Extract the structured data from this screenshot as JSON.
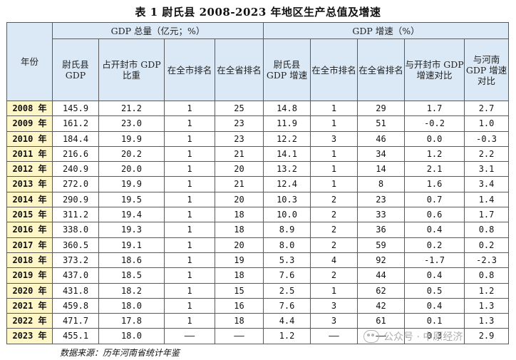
{
  "title": "表 1  尉氏县 2008-2023 年地区生产总值及增速",
  "header": {
    "year": "年份",
    "group_gdp": "GDP 总量（亿元；%）",
    "group_growth": "GDP 增速（%）",
    "columns": [
      "尉氏县 GDP",
      "占开封市 GDP 比重",
      "在全市排名",
      "在全省排名",
      "尉氏县 GDP 增速",
      "在全市排名",
      "在全省排名",
      "与开封市 GDP 增速对比",
      "与河南 GDP 增速对比"
    ]
  },
  "rows": [
    {
      "year": "2008 年",
      "gdp": "145.9",
      "share": "21.2",
      "city_rank": "1",
      "prov_rank": "25",
      "growth": "14.8",
      "g_city_rank": "1",
      "g_prov_rank": "29",
      "vs_kaifeng": "1.7",
      "vs_henan": "2.7"
    },
    {
      "year": "2009 年",
      "gdp": "161.2",
      "share": "23.0",
      "city_rank": "1",
      "prov_rank": "23",
      "growth": "11.9",
      "g_city_rank": "1",
      "g_prov_rank": "51",
      "vs_kaifeng": "-0.2",
      "vs_henan": "1.0"
    },
    {
      "year": "2010 年",
      "gdp": "184.4",
      "share": "19.9",
      "city_rank": "1",
      "prov_rank": "23",
      "growth": "12.2",
      "g_city_rank": "3",
      "g_prov_rank": "46",
      "vs_kaifeng": "0.0",
      "vs_henan": "-0.3"
    },
    {
      "year": "2011 年",
      "gdp": "216.6",
      "share": "20.2",
      "city_rank": "1",
      "prov_rank": "21",
      "growth": "14.1",
      "g_city_rank": "1",
      "g_prov_rank": "34",
      "vs_kaifeng": "1.2",
      "vs_henan": "2.2"
    },
    {
      "year": "2012 年",
      "gdp": "240.9",
      "share": "20.0",
      "city_rank": "1",
      "prov_rank": "20",
      "growth": "13.2",
      "g_city_rank": "1",
      "g_prov_rank": "14",
      "vs_kaifeng": "2.1",
      "vs_henan": "3.1"
    },
    {
      "year": "2013 年",
      "gdp": "272.0",
      "share": "19.9",
      "city_rank": "1",
      "prov_rank": "21",
      "growth": "12.4",
      "g_city_rank": "1",
      "g_prov_rank": "8",
      "vs_kaifeng": "1.6",
      "vs_henan": "3.4"
    },
    {
      "year": "2014 年",
      "gdp": "290.9",
      "share": "19.5",
      "city_rank": "1",
      "prov_rank": "20",
      "growth": "10.3",
      "g_city_rank": "2",
      "g_prov_rank": "23",
      "vs_kaifeng": "0.7",
      "vs_henan": "1.4"
    },
    {
      "year": "2015 年",
      "gdp": "311.2",
      "share": "19.4",
      "city_rank": "1",
      "prov_rank": "18",
      "growth": "10.0",
      "g_city_rank": "2",
      "g_prov_rank": "33",
      "vs_kaifeng": "0.6",
      "vs_henan": "1.7"
    },
    {
      "year": "2016 年",
      "gdp": "338.0",
      "share": "19.3",
      "city_rank": "1",
      "prov_rank": "18",
      "growth": "8.9",
      "g_city_rank": "2",
      "g_prov_rank": "36",
      "vs_kaifeng": "0.4",
      "vs_henan": "0.8"
    },
    {
      "year": "2017 年",
      "gdp": "360.5",
      "share": "19.1",
      "city_rank": "1",
      "prov_rank": "20",
      "growth": "8.0",
      "g_city_rank": "2",
      "g_prov_rank": "59",
      "vs_kaifeng": "0.2",
      "vs_henan": "0.2"
    },
    {
      "year": "2018 年",
      "gdp": "373.2",
      "share": "18.6",
      "city_rank": "1",
      "prov_rank": "19",
      "growth": "5.3",
      "g_city_rank": "4",
      "g_prov_rank": "92",
      "vs_kaifeng": "-1.7",
      "vs_henan": "-2.3"
    },
    {
      "year": "2019 年",
      "gdp": "437.0",
      "share": "18.5",
      "city_rank": "1",
      "prov_rank": "18",
      "growth": "7.6",
      "g_city_rank": "2",
      "g_prov_rank": "44",
      "vs_kaifeng": "0.4",
      "vs_henan": "0.8"
    },
    {
      "year": "2020 年",
      "gdp": "431.8",
      "share": "18.2",
      "city_rank": "1",
      "prov_rank": "15",
      "growth": "2.5",
      "g_city_rank": "1",
      "g_prov_rank": "62",
      "vs_kaifeng": "0.5",
      "vs_henan": "1.2"
    },
    {
      "year": "2021 年",
      "gdp": "459.8",
      "share": "18.0",
      "city_rank": "1",
      "prov_rank": "16",
      "growth": "7.6",
      "g_city_rank": "3",
      "g_prov_rank": "42",
      "vs_kaifeng": "0.4",
      "vs_henan": "1.3"
    },
    {
      "year": "2022 年",
      "gdp": "471.7",
      "share": "17.8",
      "city_rank": "1",
      "prov_rank": "18",
      "growth": "4.4",
      "g_city_rank": "3",
      "g_prov_rank": "61",
      "vs_kaifeng": "0.1",
      "vs_henan": "1.3"
    },
    {
      "year": "2023 年",
      "gdp": "455.1",
      "share": "18.0",
      "city_rank": "——",
      "prov_rank": "——",
      "growth": "1.2",
      "g_city_rank": "——",
      "g_prov_rank": "——",
      "vs_kaifeng": "0.3",
      "vs_henan": "2.9"
    }
  ],
  "source": "数据来源：历年河南省统计年鉴",
  "watermark": "公众号 · 中原经济",
  "colors": {
    "header_bg": "#dbe9f6",
    "year_bg": "#fff6c8",
    "border": "#5a5a5a"
  }
}
